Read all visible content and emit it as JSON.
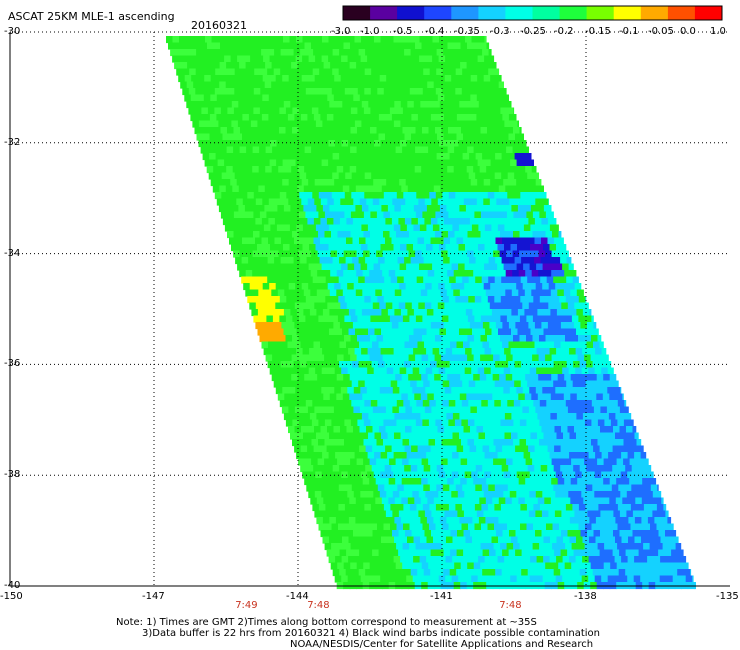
{
  "header": {
    "title": "ASCAT 25KM MLE-1 ascending",
    "date": "20160321"
  },
  "colorbar": {
    "tick_labels": [
      "-3.0",
      "-1.0",
      "-0.5",
      "-0.4",
      "-0.35",
      "-0.3",
      "-0.25",
      "-0.2",
      "-0.15",
      "-0.1",
      "-0.05",
      "0.0",
      "1.0"
    ],
    "colors": [
      "#2a0020",
      "#5a00a0",
      "#1010d0",
      "#1e46ff",
      "#1e96ff",
      "#14d2ff",
      "#00ffe6",
      "#00ffa0",
      "#1eff3c",
      "#78ff00",
      "#ffff00",
      "#ffaa00",
      "#ff5000",
      "#ff0000"
    ]
  },
  "map": {
    "lat_labels": [
      "-30",
      "-32",
      "-34",
      "-36",
      "-38",
      "-40"
    ],
    "lon_labels": [
      "-150",
      "-147",
      "-144",
      "-141",
      "-138",
      "-135"
    ],
    "lat_values": [
      -30,
      -32,
      -34,
      -36,
      -38,
      -40
    ],
    "lon_values": [
      -150,
      -147,
      -144,
      -141,
      -138,
      -135
    ],
    "lat_range": [
      -40,
      -30
    ],
    "lon_range": [
      -150,
      -135
    ],
    "gridlines": true,
    "swath_colors": {
      "green": "#22f022",
      "light_green": "#3cff3c",
      "cyan": "#00ffe6",
      "light_blue": "#14d2ff",
      "blue": "#1e6eff",
      "deep_blue": "#1414d2",
      "purple": "#4a00c8",
      "yellow": "#ffff00",
      "orange": "#ffaa00"
    }
  },
  "times": [
    {
      "label": "7:49",
      "lon": -145.1
    },
    {
      "label": "7:48",
      "lon": -143.6
    },
    {
      "label": "7:48",
      "lon": -139.6
    }
  ],
  "notes": [
    "Note: 1) Times are GMT 2)Times along bottom correspond to measurement at ~35S",
    "3)Data buffer is 22 hrs from 20160321 4) Black wind barbs indicate possible contamination",
    "NOAA/NESDIS/Center for Satellite Applications and Research"
  ]
}
